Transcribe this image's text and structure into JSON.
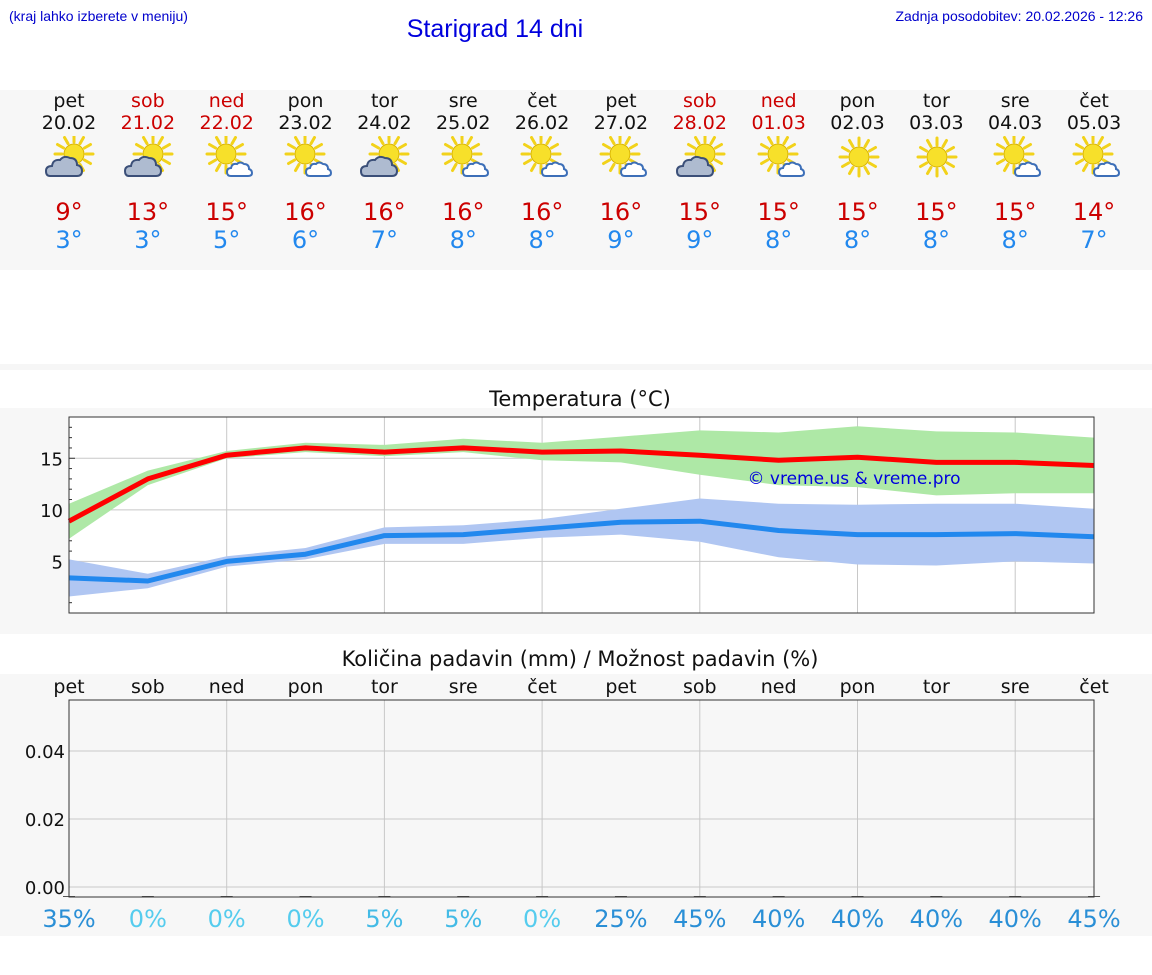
{
  "header": {
    "hint": "(kraj lahko izberete v meniju)",
    "title": "Starigrad 14 dni",
    "updated": "Zadnja posodobitev: 20.02.2026 - 12:26"
  },
  "colors": {
    "max": "#cc0000",
    "min": "#2288ee",
    "weekend": "#cc0000",
    "link": "#0000cc"
  },
  "days": [
    {
      "name": "pet",
      "date": "20.02",
      "weekend": false,
      "icon": "partly-cloudy-icon",
      "max": "9°",
      "min": "3°"
    },
    {
      "name": "sob",
      "date": "21.02",
      "weekend": true,
      "icon": "partly-cloudy-icon",
      "max": "13°",
      "min": "3°"
    },
    {
      "name": "ned",
      "date": "22.02",
      "weekend": true,
      "icon": "mostly-sunny-icon",
      "max": "15°",
      "min": "5°"
    },
    {
      "name": "pon",
      "date": "23.02",
      "weekend": false,
      "icon": "mostly-sunny-icon",
      "max": "16°",
      "min": "6°"
    },
    {
      "name": "tor",
      "date": "24.02",
      "weekend": false,
      "icon": "partly-cloudy-icon",
      "max": "16°",
      "min": "7°"
    },
    {
      "name": "sre",
      "date": "25.02",
      "weekend": false,
      "icon": "mostly-sunny-icon",
      "max": "16°",
      "min": "8°"
    },
    {
      "name": "čet",
      "date": "26.02",
      "weekend": false,
      "icon": "mostly-sunny-icon",
      "max": "16°",
      "min": "8°"
    },
    {
      "name": "pet",
      "date": "27.02",
      "weekend": false,
      "icon": "mostly-sunny-icon",
      "max": "16°",
      "min": "9°"
    },
    {
      "name": "sob",
      "date": "28.02",
      "weekend": true,
      "icon": "partly-cloudy-icon",
      "max": "15°",
      "min": "9°"
    },
    {
      "name": "ned",
      "date": "01.03",
      "weekend": true,
      "icon": "mostly-sunny-icon",
      "max": "15°",
      "min": "8°"
    },
    {
      "name": "pon",
      "date": "02.03",
      "weekend": false,
      "icon": "sunny-icon",
      "max": "15°",
      "min": "8°"
    },
    {
      "name": "tor",
      "date": "03.03",
      "weekend": false,
      "icon": "sunny-icon",
      "max": "15°",
      "min": "8°"
    },
    {
      "name": "sre",
      "date": "04.03",
      "weekend": false,
      "icon": "mostly-sunny-icon",
      "max": "15°",
      "min": "8°"
    },
    {
      "name": "čet",
      "date": "05.03",
      "weekend": false,
      "icon": "mostly-sunny-icon",
      "max": "14°",
      "min": "7°"
    }
  ],
  "chart_data": [
    {
      "type": "line",
      "title": "Temperatura (°C)",
      "xlabel": "",
      "ylabel": "",
      "x": [
        0,
        1,
        2,
        3,
        4,
        5,
        6,
        7,
        8,
        9,
        10,
        11,
        12,
        13
      ],
      "ylim": [
        0,
        19
      ],
      "yticks": [
        5,
        10,
        15
      ],
      "watermark": "© vreme.us & vreme.pro",
      "series": [
        {
          "name": "max",
          "color": "#ff0000",
          "values": [
            8.9,
            13.0,
            15.3,
            16.0,
            15.6,
            16.0,
            15.6,
            15.7,
            15.3,
            14.8,
            15.1,
            14.6,
            14.6,
            14.3
          ],
          "band_low": [
            7.2,
            12.4,
            15.0,
            15.6,
            15.2,
            15.6,
            14.8,
            14.6,
            13.4,
            12.4,
            12.2,
            11.4,
            11.6,
            11.6
          ],
          "band_high": [
            10.6,
            13.8,
            15.7,
            16.5,
            16.3,
            16.9,
            16.5,
            17.1,
            17.7,
            17.5,
            18.1,
            17.6,
            17.5,
            17.0
          ],
          "band_color": "#aee8a6"
        },
        {
          "name": "min",
          "color": "#2288ee",
          "values": [
            3.4,
            3.1,
            5.0,
            5.7,
            7.5,
            7.6,
            8.2,
            8.8,
            8.9,
            8.0,
            7.6,
            7.6,
            7.7,
            7.4
          ],
          "band_low": [
            1.6,
            2.4,
            4.5,
            5.2,
            6.7,
            6.7,
            7.3,
            7.6,
            6.9,
            5.4,
            4.7,
            4.6,
            5.0,
            4.8
          ],
          "band_high": [
            5.2,
            3.8,
            5.5,
            6.3,
            8.3,
            8.5,
            9.1,
            10.1,
            11.1,
            10.6,
            10.5,
            10.6,
            10.6,
            10.1
          ],
          "band_color": "#b0c6f2"
        }
      ]
    },
    {
      "type": "bar",
      "title": "Količina padavin (mm) / Možnost padavin (%)",
      "categories": [
        "pet",
        "sob",
        "ned",
        "pon",
        "tor",
        "sre",
        "čet",
        "pet",
        "sob",
        "ned",
        "pon",
        "tor",
        "sre",
        "čet"
      ],
      "values": [
        0,
        0,
        0,
        0,
        0,
        0,
        0,
        0,
        0,
        0,
        0,
        0,
        0,
        0
      ],
      "ylim": [
        0,
        0.055
      ],
      "yticks": [
        "0.00",
        "0.02",
        "0.04"
      ],
      "chance": [
        "35%",
        "0%",
        "0%",
        "0%",
        "5%",
        "5%",
        "0%",
        "25%",
        "45%",
        "40%",
        "40%",
        "40%",
        "40%",
        "45%"
      ],
      "chance_values": [
        35,
        0,
        0,
        0,
        5,
        5,
        0,
        25,
        45,
        40,
        40,
        40,
        40,
        45
      ]
    }
  ]
}
